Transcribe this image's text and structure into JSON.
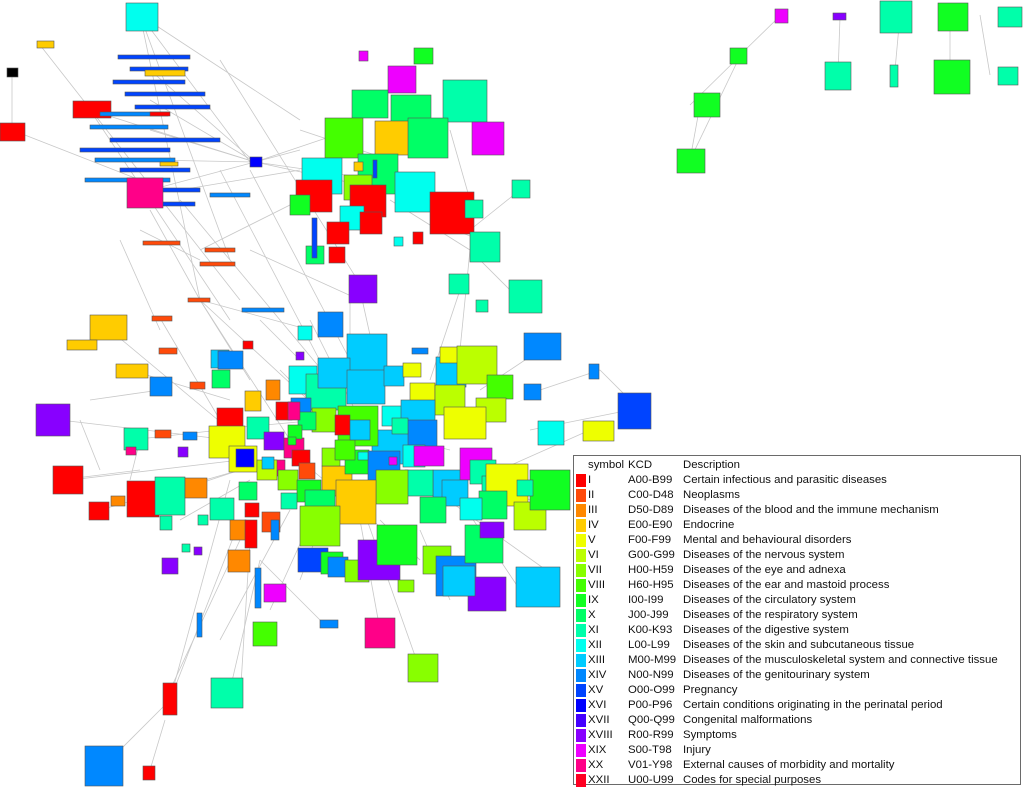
{
  "legend": {
    "headers": {
      "symbol": "symbol",
      "kcd": "KCD",
      "description": "Description"
    },
    "rows": [
      {
        "symbol": "I",
        "kcd": "A00-B99",
        "description": "Certain infectious and parasitic diseases",
        "color": "#ff0000"
      },
      {
        "symbol": "II",
        "kcd": "C00-D48",
        "description": "Neoplasms",
        "color": "#ff4a0a"
      },
      {
        "symbol": "III",
        "kcd": "D50-D89",
        "description": "Diseases of the blood and the immune mechanism",
        "color": "#ff8800"
      },
      {
        "symbol": "IV",
        "kcd": "E00-E90",
        "description": "Endocrine",
        "color": "#ffcc00"
      },
      {
        "symbol": "V",
        "kcd": "F00-F99",
        "description": "Mental and behavioural disorders",
        "color": "#eeff00"
      },
      {
        "symbol": "VI",
        "kcd": "G00-G99",
        "description": "Diseases of the nervous system",
        "color": "#bbff00"
      },
      {
        "symbol": "VII",
        "kcd": "H00-H59",
        "description": "Diseases of the eye and adnexa",
        "color": "#88ff00"
      },
      {
        "symbol": "VIII",
        "kcd": "H60-H95",
        "description": "Diseases of the ear and mastoid process",
        "color": "#44ff00"
      },
      {
        "symbol": "IX",
        "kcd": "I00-I99",
        "description": "Diseases of the circulatory system",
        "color": "#11ff22"
      },
      {
        "symbol": "X",
        "kcd": "J00-J99",
        "description": "Diseases of the respiratory system",
        "color": "#00ff66"
      },
      {
        "symbol": "XI",
        "kcd": "K00-K93",
        "description": "Diseases of the digestive system",
        "color": "#00ffaa"
      },
      {
        "symbol": "XII",
        "kcd": "L00-L99",
        "description": "Diseases of the skin and subcutaneous tissue",
        "color": "#00ffee"
      },
      {
        "symbol": "XIII",
        "kcd": "M00-M99",
        "description": "Diseases of the musculoskeletal system and connective tissue",
        "color": "#00ccff"
      },
      {
        "symbol": "XIV",
        "kcd": "N00-N99",
        "description": "Diseases of the genitourinary system",
        "color": "#0088ff"
      },
      {
        "symbol": "XV",
        "kcd": "O00-O99",
        "description": "Pregnancy",
        "color": "#0044ff"
      },
      {
        "symbol": "XVI",
        "kcd": "P00-P96",
        "description": "Certain conditions originating in the perinatal period",
        "color": "#0000ff"
      },
      {
        "symbol": "XVII",
        "kcd": "Q00-Q99",
        "description": "Congenital malformations",
        "color": "#4400ff"
      },
      {
        "symbol": "XVIII",
        "kcd": "R00-R99",
        "description": "Symptoms",
        "color": "#8800ff"
      },
      {
        "symbol": "XIX",
        "kcd": "S00-T98",
        "description": "Injury",
        "color": "#ee00ff"
      },
      {
        "symbol": "XX",
        "kcd": "V01-Y98",
        "description": "External causes of morbidity and mortality",
        "color": "#ff0088"
      },
      {
        "symbol": "XXII",
        "kcd": "U00-U99",
        "description": "Codes for special purposes",
        "color": "#ff0022"
      }
    ]
  }
}
